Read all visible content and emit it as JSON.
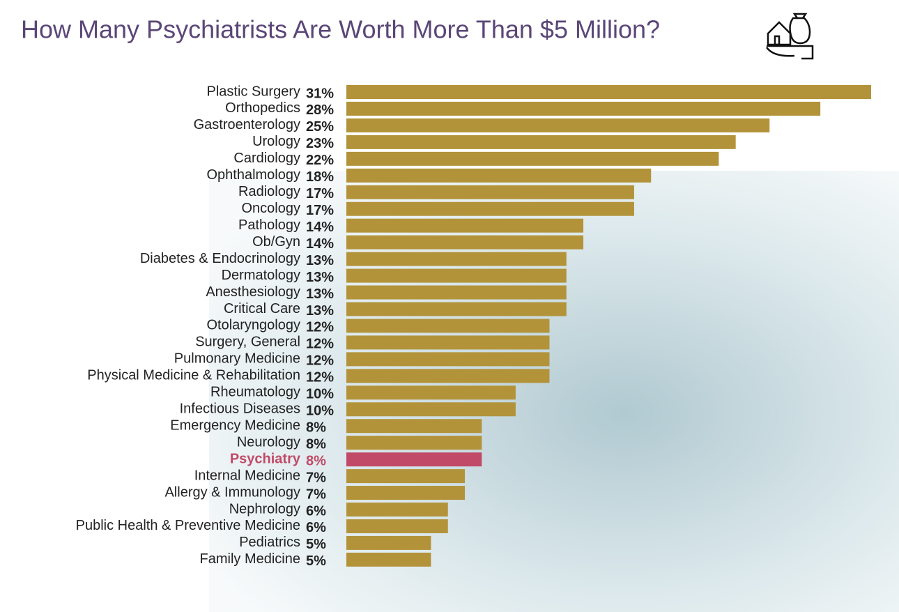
{
  "chart_data": {
    "type": "bar",
    "orientation": "horizontal",
    "title": "How Many Psychiatrists Are Worth More Than $5 Million?",
    "categories": [
      "Plastic Surgery",
      "Orthopedics",
      "Gastroenterology",
      "Urology",
      "Cardiology",
      "Ophthalmology",
      "Radiology",
      "Oncology",
      "Pathology",
      "Ob/Gyn",
      "Diabetes & Endocrinology",
      "Dermatology",
      "Anesthesiology",
      "Critical Care",
      "Otolaryngology",
      "Surgery, General",
      "Pulmonary Medicine",
      "Physical Medicine & Rehabilitation",
      "Rheumatology",
      "Infectious Diseases",
      "Emergency Medicine",
      "Neurology",
      "Psychiatry",
      "Internal Medicine",
      "Allergy & Immunology",
      "Nephrology",
      "Public Health & Preventive Medicine",
      "Pediatrics",
      "Family Medicine"
    ],
    "values": [
      31,
      28,
      25,
      23,
      22,
      18,
      17,
      17,
      14,
      14,
      13,
      13,
      13,
      13,
      12,
      12,
      12,
      12,
      10,
      10,
      8,
      8,
      8,
      7,
      7,
      6,
      6,
      5,
      5
    ],
    "value_labels": [
      "31%",
      "28%",
      "25%",
      "23%",
      "22%",
      "18%",
      "17%",
      "17%",
      "14%",
      "14%",
      "13%",
      "13%",
      "13%",
      "13%",
      "12%",
      "12%",
      "12%",
      "12%",
      "10%",
      "10%",
      "8%",
      "8%",
      "8%",
      "7%",
      "7%",
      "6%",
      "6%",
      "5%",
      "5%"
    ],
    "colors": [
      "#b3933a",
      "#b3933a",
      "#b3933a",
      "#b3933a",
      "#b3933a",
      "#b3933a",
      "#b3933a",
      "#b3933a",
      "#b3933a",
      "#b3933a",
      "#b3933a",
      "#b3933a",
      "#b3933a",
      "#b3933a",
      "#b3933a",
      "#b3933a",
      "#b3933a",
      "#b3933a",
      "#b3933a",
      "#b3933a",
      "#b3933a",
      "#b3933a",
      "#c04a67",
      "#b3933a",
      "#b3933a",
      "#b3933a",
      "#b3933a",
      "#b3933a",
      "#b3933a"
    ]
  }
}
